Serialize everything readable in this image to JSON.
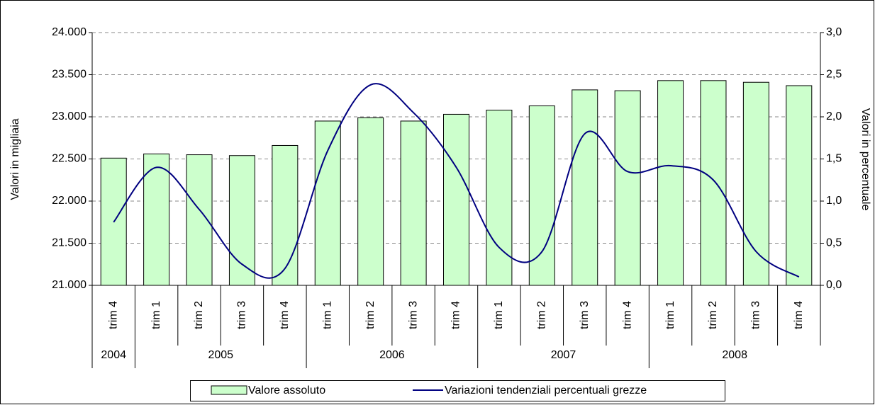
{
  "chart_data": {
    "type": "bar",
    "y_label": "Valori in migliaia",
    "y2_label": "Valori in percentuale",
    "groups": [
      {
        "label": "2004",
        "categories": [
          "trim 4"
        ]
      },
      {
        "label": "2005",
        "categories": [
          "trim 1",
          "trim 2",
          "trim 3",
          "trim 4"
        ]
      },
      {
        "label": "2006",
        "categories": [
          "trim 1",
          "trim 2",
          "trim 3",
          "trim 4"
        ]
      },
      {
        "label": "2007",
        "categories": [
          "trim 1",
          "trim 2",
          "trim 3",
          "trim 4"
        ]
      },
      {
        "label": "2008",
        "categories": [
          "trim 1",
          "trim 2",
          "trim 3",
          "trim 4"
        ]
      }
    ],
    "series": [
      {
        "name": "Valore assoluto",
        "type": "bar",
        "color": "#ccffcc",
        "values": [
          22510,
          22560,
          22550,
          22540,
          22660,
          22950,
          22990,
          22950,
          23030,
          23080,
          23130,
          23320,
          23310,
          23430,
          23430,
          23410,
          23370
        ]
      },
      {
        "name": "Variazioni tendenziali percentuali grezze",
        "type": "line",
        "axis": "y2",
        "color": "#000080",
        "values": [
          0.75,
          1.4,
          0.9,
          0.25,
          0.2,
          1.6,
          2.38,
          2.05,
          1.4,
          0.45,
          0.4,
          1.8,
          1.35,
          1.42,
          1.25,
          0.4,
          0.1
        ]
      }
    ],
    "ylim": [
      21000,
      24000
    ],
    "yticks": [
      {
        "value": 21000,
        "label": "21.000"
      },
      {
        "value": 21500,
        "label": "21.500"
      },
      {
        "value": 22000,
        "label": "22.000"
      },
      {
        "value": 22500,
        "label": "22.500"
      },
      {
        "value": 23000,
        "label": "23.000"
      },
      {
        "value": 23500,
        "label": "23.500"
      },
      {
        "value": 24000,
        "label": "24.000"
      }
    ],
    "y2lim": [
      0,
      3
    ],
    "y2ticks": [
      {
        "value": 0,
        "label": "0,0"
      },
      {
        "value": 0.5,
        "label": "0,5"
      },
      {
        "value": 1,
        "label": "1,0"
      },
      {
        "value": 1.5,
        "label": "1,5"
      },
      {
        "value": 2,
        "label": "2,0"
      },
      {
        "value": 2.5,
        "label": "2,5"
      },
      {
        "value": 3,
        "label": "3,0"
      }
    ],
    "grid": true,
    "legend": "bottom"
  }
}
